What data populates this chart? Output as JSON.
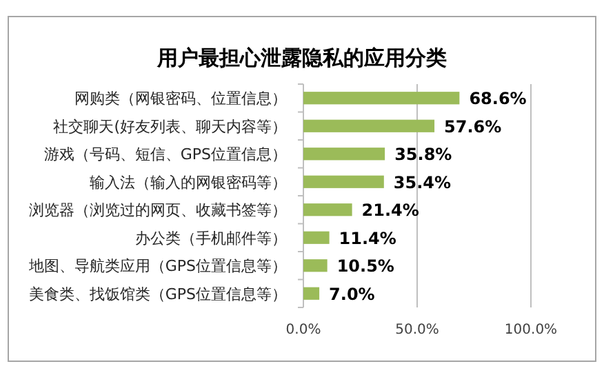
{
  "chart_data": {
    "type": "bar",
    "orientation": "horizontal",
    "title": "用户最担心泄露隐私的应用分类",
    "categories": [
      "网购类（网银密码、位置信息）",
      "社交聊天(好友列表、聊天内容等）",
      "游戏（号码、短信、GPS位置信息）",
      "输入法（输入的网银密码等）",
      "浏览器（浏览过的网页、收藏书签等）",
      "办公类（手机邮件等）",
      "地图、导航类应用（GPS位置信息等）",
      "美食类、找饭馆类（GPS位置信息等）"
    ],
    "values": [
      68.6,
      57.6,
      35.8,
      35.4,
      21.4,
      11.4,
      10.5,
      7.0
    ],
    "value_labels": [
      "68.6%",
      "57.6%",
      "35.8%",
      "35.4%",
      "21.4%",
      "11.4%",
      "10.5%",
      "7.0%"
    ],
    "color": "#9bbb59",
    "xlim": [
      0,
      100
    ],
    "xticks": [
      {
        "value": 0,
        "label": "0.0%"
      },
      {
        "value": 50,
        "label": "50.0%"
      },
      {
        "value": 100,
        "label": "100.0%"
      }
    ],
    "grid": "x"
  }
}
